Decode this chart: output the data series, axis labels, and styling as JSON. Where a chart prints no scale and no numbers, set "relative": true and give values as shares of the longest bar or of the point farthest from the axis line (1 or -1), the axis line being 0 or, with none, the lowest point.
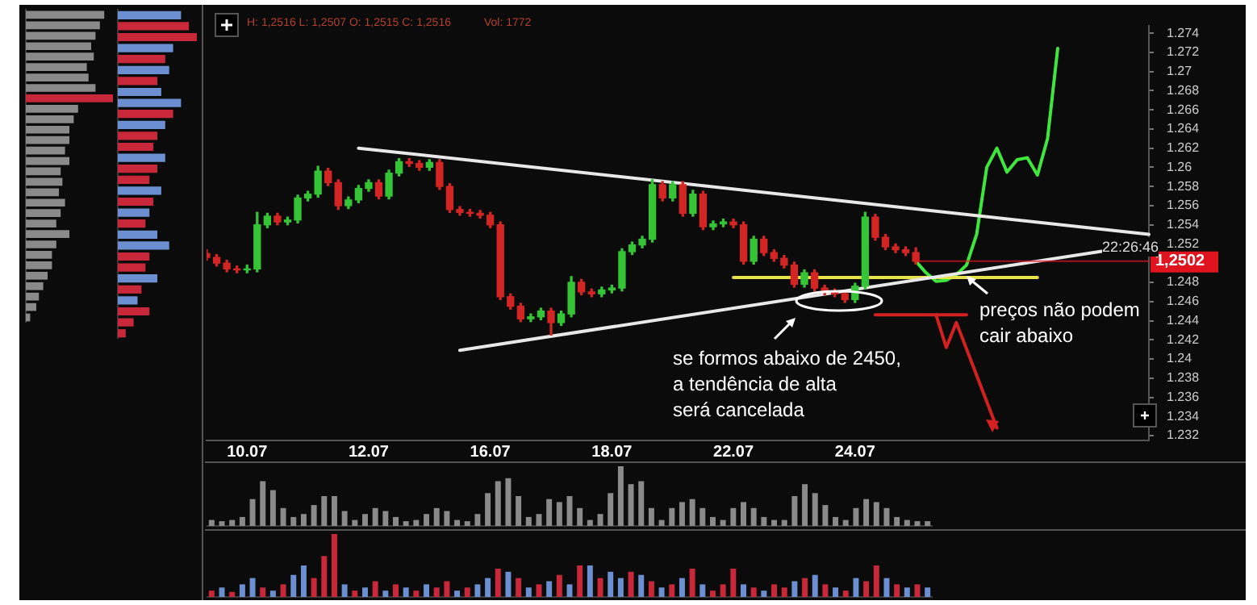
{
  "chart_data": [
    {
      "type": "candlestick",
      "legend": false,
      "grid": false,
      "categories": [
        null,
        null,
        null,
        null,
        "10.07",
        null,
        null,
        null,
        null,
        null,
        null,
        null,
        null,
        null,
        null,
        null,
        "12.07",
        null,
        null,
        null,
        null,
        null,
        null,
        null,
        null,
        null,
        null,
        null,
        "16.07",
        null,
        null,
        null,
        null,
        null,
        null,
        null,
        null,
        null,
        null,
        null,
        "18.07",
        null,
        null,
        null,
        null,
        null,
        null,
        null,
        null,
        null,
        null,
        null,
        "22.07",
        null,
        null,
        null,
        null,
        null,
        null,
        null,
        null,
        null,
        null,
        null,
        "24.07",
        null,
        null,
        null,
        null,
        null,
        null,
        null,
        null,
        null,
        null,
        null,
        null,
        null,
        null,
        null,
        null,
        null,
        null,
        null,
        null,
        null,
        null,
        null,
        null,
        null,
        null,
        null,
        null,
        null
      ],
      "ohlc": [
        [
          1.251,
          1.2514,
          1.2503,
          1.2506
        ],
        [
          1.2506,
          1.2509,
          1.2497,
          1.25
        ],
        [
          1.25,
          1.2503,
          1.2491,
          1.2494
        ],
        [
          1.2494,
          1.2497,
          1.249,
          1.2493
        ],
        [
          1.2493,
          1.2498,
          1.249,
          1.2494
        ],
        [
          1.2494,
          1.2553,
          1.2491,
          1.254
        ],
        [
          1.254,
          1.2552,
          1.2537,
          1.2549
        ],
        [
          1.2549,
          1.2552,
          1.254,
          1.2543
        ],
        [
          1.2543,
          1.2548,
          1.254,
          1.2545
        ],
        [
          1.2545,
          1.2571,
          1.2542,
          1.2568
        ],
        [
          1.2568,
          1.2575,
          1.2565,
          1.2572
        ],
        [
          1.2572,
          1.2601,
          1.2569,
          1.2596
        ],
        [
          1.2596,
          1.2599,
          1.2581,
          1.2584
        ],
        [
          1.2584,
          1.2587,
          1.2556,
          1.256
        ],
        [
          1.256,
          1.2569,
          1.2557,
          1.2566
        ],
        [
          1.2566,
          1.2581,
          1.2563,
          1.2578
        ],
        [
          1.2578,
          1.2587,
          1.2575,
          1.2584
        ],
        [
          1.2584,
          1.2587,
          1.2567,
          1.257
        ],
        [
          1.257,
          1.2597,
          1.2567,
          1.2594
        ],
        [
          1.2594,
          1.2609,
          1.2591,
          1.2606
        ],
        [
          1.2606,
          1.2609,
          1.2601,
          1.2604
        ],
        [
          1.2604,
          1.2607,
          1.2597,
          1.26
        ],
        [
          1.26,
          1.2608,
          1.2597,
          1.2605
        ],
        [
          1.2605,
          1.2608,
          1.2577,
          1.258
        ],
        [
          1.258,
          1.2583,
          1.2553,
          1.2556
        ],
        [
          1.2556,
          1.2559,
          1.255,
          1.2553
        ],
        [
          1.2553,
          1.2556,
          1.2549,
          1.2552
        ],
        [
          1.2552,
          1.2555,
          1.2547,
          1.255
        ],
        [
          1.255,
          1.2553,
          1.2537,
          1.254
        ],
        [
          1.254,
          1.2543,
          1.2462,
          1.2465
        ],
        [
          1.2465,
          1.2468,
          1.2452,
          1.2455
        ],
        [
          1.2455,
          1.2458,
          1.2439,
          1.2442
        ],
        [
          1.2442,
          1.2447,
          1.2439,
          1.2444
        ],
        [
          1.2444,
          1.2453,
          1.2441,
          1.245
        ],
        [
          1.245,
          1.2453,
          1.2425,
          1.2438
        ],
        [
          1.2438,
          1.245,
          1.2435,
          1.2447
        ],
        [
          1.2447,
          1.2486,
          1.2444,
          1.248
        ],
        [
          1.248,
          1.2483,
          1.2467,
          1.247
        ],
        [
          1.247,
          1.2473,
          1.2465,
          1.2468
        ],
        [
          1.2468,
          1.2475,
          1.2465,
          1.2472
        ],
        [
          1.2472,
          1.2477,
          1.2469,
          1.2474
        ],
        [
          1.2474,
          1.2515,
          1.2471,
          1.2512
        ],
        [
          1.2512,
          1.2522,
          1.2509,
          1.2519
        ],
        [
          1.2519,
          1.2528,
          1.2516,
          1.2525
        ],
        [
          1.2525,
          1.2587,
          1.2522,
          1.2582
        ],
        [
          1.2582,
          1.2585,
          1.2565,
          1.2568
        ],
        [
          1.2568,
          1.2585,
          1.2565,
          1.2582
        ],
        [
          1.2582,
          1.2585,
          1.2549,
          1.2552
        ],
        [
          1.2552,
          1.2576,
          1.2549,
          1.2572
        ],
        [
          1.2572,
          1.2575,
          1.2535,
          1.2538
        ],
        [
          1.2538,
          1.2544,
          1.2535,
          1.2541
        ],
        [
          1.2541,
          1.2546,
          1.2538,
          1.2543
        ],
        [
          1.2543,
          1.2546,
          1.2537,
          1.254
        ],
        [
          1.254,
          1.2543,
          1.2499,
          1.2502
        ],
        [
          1.2502,
          1.2528,
          1.2499,
          1.2525
        ],
        [
          1.2525,
          1.2528,
          1.2508,
          1.2511
        ],
        [
          1.2511,
          1.2514,
          1.2502,
          1.2505
        ],
        [
          1.2505,
          1.2508,
          1.2495,
          1.2498
        ],
        [
          1.2498,
          1.2501,
          1.2475,
          1.2478
        ],
        [
          1.2478,
          1.2493,
          1.2475,
          1.249
        ],
        [
          1.249,
          1.2493,
          1.2471,
          1.2474
        ],
        [
          1.2474,
          1.2477,
          1.2467,
          1.247
        ],
        [
          1.247,
          1.2473,
          1.2465,
          1.2468
        ],
        [
          1.2468,
          1.2471,
          1.2459,
          1.2462
        ],
        [
          1.2462,
          1.2479,
          1.2459,
          1.2476
        ],
        [
          1.2476,
          1.2553,
          1.2473,
          1.2548
        ],
        [
          1.2548,
          1.2551,
          1.2524,
          1.2527
        ],
        [
          1.2527,
          1.253,
          1.2514,
          1.2517
        ],
        [
          1.2517,
          1.252,
          1.2511,
          1.2514
        ],
        [
          1.2514,
          1.2517,
          1.2508,
          1.2511
        ],
        [
          1.2511,
          1.2516,
          1.2499,
          1.2502
        ],
        null,
        null,
        null,
        null,
        null,
        null,
        null,
        null,
        null,
        null,
        null,
        null,
        null,
        null,
        null,
        null,
        null,
        null,
        null,
        null,
        null,
        null,
        null
      ],
      "series": [
        {
          "type": "line",
          "color": "#e8e8e8",
          "values": [
            null,
            null,
            null,
            null,
            null,
            null,
            null,
            null,
            null,
            null,
            null,
            null,
            null,
            null,
            null,
            1.262,
            null,
            null,
            null,
            null,
            null,
            null,
            null,
            null,
            null,
            null,
            null,
            null,
            null,
            null,
            null,
            null,
            null,
            null,
            null,
            null,
            null,
            null,
            null,
            null,
            null,
            null,
            null,
            null,
            null,
            null,
            null,
            null,
            null,
            null,
            null,
            null,
            null,
            null,
            null,
            null,
            null,
            null,
            null,
            null,
            null,
            null,
            null,
            null,
            null,
            null,
            null,
            null,
            null,
            null,
            null,
            null,
            null,
            null,
            null,
            null,
            null,
            null,
            null,
            null,
            null,
            null,
            null,
            null,
            null,
            null,
            null,
            null,
            null,
            null,
            null,
            null,
            null,
            1.253
          ]
        },
        {
          "type": "line",
          "color": "#e8e8e8",
          "values": [
            null,
            null,
            null,
            null,
            null,
            null,
            null,
            null,
            null,
            null,
            null,
            null,
            null,
            null,
            null,
            null,
            null,
            null,
            null,
            null,
            null,
            null,
            null,
            null,
            null,
            1.2409,
            null,
            null,
            null,
            null,
            null,
            null,
            null,
            null,
            null,
            null,
            null,
            null,
            null,
            null,
            null,
            null,
            null,
            null,
            null,
            null,
            null,
            null,
            null,
            null,
            null,
            null,
            null,
            null,
            null,
            null,
            null,
            null,
            null,
            null,
            null,
            null,
            null,
            null,
            null,
            null,
            null,
            null,
            null,
            null,
            null,
            null,
            null,
            null,
            null,
            null,
            null,
            null,
            null,
            null,
            null,
            null,
            null,
            null,
            null,
            null,
            null,
            null,
            null,
            null,
            null,
            null,
            null,
            1.252
          ]
        },
        {
          "type": "line",
          "color": "#e6e04a",
          "values": [
            null,
            null,
            null,
            null,
            null,
            null,
            null,
            null,
            null,
            null,
            null,
            null,
            null,
            null,
            null,
            null,
            null,
            null,
            null,
            null,
            null,
            null,
            null,
            null,
            null,
            null,
            null,
            null,
            null,
            null,
            null,
            null,
            null,
            null,
            null,
            null,
            null,
            null,
            null,
            null,
            null,
            null,
            null,
            null,
            null,
            null,
            null,
            null,
            null,
            null,
            null,
            null,
            1.2485,
            null,
            null,
            null,
            null,
            null,
            null,
            null,
            null,
            null,
            null,
            null,
            null,
            null,
            null,
            null,
            null,
            null,
            null,
            null,
            null,
            null,
            null,
            null,
            null,
            null,
            null,
            null,
            null,
            null,
            1.2485,
            null,
            null,
            null,
            null,
            null,
            null,
            null,
            null,
            null,
            null,
            null
          ]
        },
        {
          "type": "line",
          "color": "#3ee63e",
          "values": [
            null,
            null,
            null,
            null,
            null,
            null,
            null,
            null,
            null,
            null,
            null,
            null,
            null,
            null,
            null,
            null,
            null,
            null,
            null,
            null,
            null,
            null,
            null,
            null,
            null,
            null,
            null,
            null,
            null,
            null,
            null,
            null,
            null,
            null,
            null,
            null,
            null,
            null,
            null,
            null,
            null,
            null,
            null,
            null,
            null,
            null,
            null,
            null,
            null,
            null,
            null,
            null,
            null,
            null,
            null,
            null,
            null,
            null,
            null,
            null,
            null,
            null,
            null,
            null,
            null,
            null,
            null,
            null,
            null,
            null,
            1.2502,
            1.249,
            1.2481,
            1.2482,
            1.2488,
            1.2498,
            1.253,
            1.26,
            1.262,
            1.2595,
            1.2608,
            1.261,
            1.2592,
            1.263,
            1.2724,
            null,
            null,
            null,
            null,
            null,
            null,
            null,
            null,
            null
          ]
        },
        {
          "type": "line",
          "color": "#d42020",
          "values": [
            null,
            null,
            null,
            null,
            null,
            null,
            null,
            null,
            null,
            null,
            null,
            null,
            null,
            null,
            null,
            null,
            null,
            null,
            null,
            null,
            null,
            null,
            null,
            null,
            null,
            null,
            null,
            null,
            null,
            null,
            null,
            null,
            null,
            null,
            null,
            null,
            null,
            null,
            null,
            null,
            null,
            null,
            null,
            null,
            null,
            null,
            null,
            null,
            null,
            null,
            null,
            null,
            null,
            null,
            null,
            null,
            null,
            null,
            null,
            null,
            null,
            null,
            null,
            null,
            null,
            null,
            1.2446,
            null,
            null,
            null,
            null,
            null,
            null,
            null,
            null,
            1.2446,
            null,
            null,
            null,
            null,
            null,
            null,
            null,
            null,
            null,
            null,
            null,
            null,
            null,
            null,
            null,
            null,
            null,
            null
          ]
        },
        {
          "type": "line",
          "color": "#d42020",
          "values": [
            null,
            null,
            null,
            null,
            null,
            null,
            null,
            null,
            null,
            null,
            null,
            null,
            null,
            null,
            null,
            null,
            null,
            null,
            null,
            null,
            null,
            null,
            null,
            null,
            null,
            null,
            null,
            null,
            null,
            null,
            null,
            null,
            null,
            null,
            null,
            null,
            null,
            null,
            null,
            null,
            null,
            null,
            null,
            null,
            null,
            null,
            null,
            null,
            null,
            null,
            null,
            null,
            null,
            null,
            null,
            null,
            null,
            null,
            null,
            null,
            null,
            null,
            null,
            null,
            null,
            null,
            null,
            null,
            null,
            null,
            null,
            null,
            1.2446,
            1.2412,
            1.2438,
            null,
            null,
            null,
            1.2328,
            null,
            null,
            null,
            null,
            null,
            null,
            null,
            null,
            null,
            null,
            null,
            null,
            null,
            null,
            null
          ]
        }
      ],
      "ylim": [
        1.2315,
        1.2748
      ],
      "yticks": [
        1.232,
        1.234,
        1.236,
        1.238,
        1.24,
        1.242,
        1.244,
        1.246,
        1.248,
        1.252,
        1.254,
        1.256,
        1.258,
        1.26,
        1.262,
        1.264,
        1.266,
        1.268,
        1.27,
        1.272,
        1.274
      ],
      "ref_lines": [
        {
          "axis": "y",
          "value": 1.2502,
          "label": "1,2502",
          "color": "#e0141e"
        }
      ],
      "annotations": [
        "H: 1,2516 L: 1,2507 O: 1,2515 C: 1,2516",
        "Vol: 1772",
        "22:26:46",
        "se formos abaixo de 2450,\na tendência de alta\nserá cancelada",
        "preços não podem\ncair abaixo"
      ]
    },
    {
      "type": "bar",
      "relative": true,
      "tick_labels": false,
      "legend": false,
      "grid": false,
      "color": "#8a8a8a",
      "categories": [
        null,
        null,
        null,
        null,
        null,
        null,
        null,
        null,
        null,
        null,
        null,
        null,
        null,
        null,
        null,
        null,
        null,
        null,
        null,
        null,
        null,
        null,
        null,
        null,
        null,
        null,
        null,
        null,
        null,
        null,
        null,
        null,
        null,
        null,
        null,
        null,
        null,
        null,
        null,
        null,
        null,
        null,
        null,
        null,
        null,
        null,
        null,
        null,
        null,
        null,
        null,
        null,
        null,
        null,
        null,
        null,
        null,
        null,
        null,
        null,
        null,
        null,
        null,
        null,
        null,
        null,
        null,
        null,
        null,
        null,
        null
      ],
      "values": [
        0.1,
        0.08,
        0.1,
        0.15,
        0.45,
        0.75,
        0.6,
        0.3,
        0.15,
        0.2,
        0.35,
        0.5,
        0.5,
        0.25,
        0.1,
        0.2,
        0.3,
        0.25,
        0.15,
        0.08,
        0.1,
        0.2,
        0.3,
        0.25,
        0.1,
        0.08,
        0.2,
        0.55,
        0.75,
        0.8,
        0.5,
        0.15,
        0.2,
        0.45,
        0.4,
        0.5,
        0.3,
        0.1,
        0.2,
        0.55,
        1.0,
        0.7,
        0.75,
        0.3,
        0.1,
        0.3,
        0.4,
        0.45,
        0.3,
        0.15,
        0.1,
        0.3,
        0.4,
        0.3,
        0.15,
        0.1,
        0.1,
        0.5,
        0.7,
        0.55,
        0.35,
        0.15,
        0.1,
        0.3,
        0.45,
        0.4,
        0.3,
        0.15,
        0.1,
        0.08,
        0.08
      ]
    },
    {
      "type": "bar",
      "relative": true,
      "tick_labels": false,
      "legend": false,
      "grid": false,
      "categories": [
        null,
        null,
        null,
        null,
        null,
        null,
        null,
        null,
        null,
        null,
        null,
        null,
        null,
        null,
        null,
        null,
        null,
        null,
        null,
        null,
        null,
        null,
        null,
        null,
        null,
        null,
        null,
        null,
        null,
        null,
        null,
        null,
        null,
        null,
        null,
        null,
        null,
        null,
        null,
        null,
        null,
        null,
        null,
        null,
        null,
        null,
        null,
        null,
        null,
        null,
        null,
        null,
        null,
        null,
        null,
        null,
        null,
        null,
        null,
        null,
        null,
        null,
        null,
        null,
        null,
        null,
        null,
        null,
        null,
        null,
        null
      ],
      "values": [
        0.1,
        0.15,
        0.08,
        0.2,
        0.3,
        0.15,
        0.1,
        0.2,
        0.35,
        0.5,
        0.3,
        0.65,
        1.0,
        0.2,
        0.1,
        0.15,
        0.25,
        0.1,
        0.2,
        0.15,
        0.1,
        0.2,
        0.15,
        0.25,
        0.1,
        0.15,
        0.2,
        0.3,
        0.45,
        0.4,
        0.3,
        0.15,
        0.2,
        0.25,
        0.35,
        0.2,
        0.5,
        0.5,
        0.3,
        0.4,
        0.3,
        0.4,
        0.35,
        0.25,
        0.15,
        0.2,
        0.3,
        0.45,
        0.2,
        0.1,
        0.2,
        0.45,
        0.2,
        0.15,
        0.1,
        0.2,
        0.15,
        0.25,
        0.3,
        0.35,
        0.2,
        0.15,
        0.1,
        0.3,
        0.25,
        0.5,
        0.3,
        0.2,
        0.15,
        0.2,
        0.15
      ],
      "colors": [
        "#c8283a",
        "#6b8fd0",
        "#c8283a",
        "#6b8fd0",
        "#6b8fd0",
        "#c8283a",
        "#6b8fd0",
        "#c8283a",
        "#6b8fd0",
        "#6b8fd0",
        "#c8283a",
        "#c8283a",
        "#c8283a",
        "#6b8fd0",
        "#c8283a",
        "#6b8fd0",
        "#c8283a",
        "#6b8fd0",
        "#c8283a",
        "#6b8fd0",
        "#c8283a",
        "#6b8fd0",
        "#c8283a",
        "#c8283a",
        "#6b8fd0",
        "#c8283a",
        "#6b8fd0",
        "#6b8fd0",
        "#c8283a",
        "#6b8fd0",
        "#c8283a",
        "#6b8fd0",
        "#c8283a",
        "#6b8fd0",
        "#c8283a",
        "#6b8fd0",
        "#c8283a",
        "#6b8fd0",
        "#c8283a",
        "#6b8fd0",
        "#6b8fd0",
        "#c8283a",
        "#6b8fd0",
        "#c8283a",
        "#6b8fd0",
        "#c8283a",
        "#6b8fd0",
        "#c8283a",
        "#6b8fd0",
        "#c8283a",
        "#c8283a",
        "#c8283a",
        "#6b8fd0",
        "#c8283a",
        "#6b8fd0",
        "#c8283a",
        "#c8283a",
        "#6b8fd0",
        "#c8283a",
        "#6b8fd0",
        "#c8283a",
        "#6b8fd0",
        "#c8283a",
        "#6b8fd0",
        "#c8283a",
        "#c8283a",
        "#6b8fd0",
        "#c8283a",
        "#6b8fd0",
        "#c8283a",
        "#6b8fd0"
      ]
    },
    {
      "type": "bar",
      "orientation": "horizontal",
      "relative": true,
      "tick_labels": false,
      "legend": false,
      "grid": false,
      "categories": [
        null,
        null,
        null,
        null,
        null,
        null,
        null,
        null,
        null,
        null,
        null,
        null,
        null,
        null,
        null,
        null,
        null,
        null,
        null,
        null,
        null,
        null,
        null,
        null,
        null,
        null,
        null,
        null,
        null,
        null
      ],
      "values": [
        0.9,
        0.85,
        0.8,
        0.75,
        0.78,
        0.7,
        0.72,
        0.8,
        1.0,
        0.6,
        0.55,
        0.5,
        0.5,
        0.45,
        0.5,
        0.4,
        0.42,
        0.38,
        0.45,
        0.4,
        0.35,
        0.5,
        0.35,
        0.3,
        0.3,
        0.25,
        0.2,
        0.15,
        0.12,
        0.05
      ],
      "colors": [
        "#8a8a8a",
        "#8a8a8a",
        "#8a8a8a",
        "#8a8a8a",
        "#8a8a8a",
        "#8a8a8a",
        "#8a8a8a",
        "#8a8a8a",
        "#c8283a",
        "#8a8a8a",
        "#8a8a8a",
        "#8a8a8a",
        "#8a8a8a",
        "#8a8a8a",
        "#8a8a8a",
        "#8a8a8a",
        "#8a8a8a",
        "#8a8a8a",
        "#8a8a8a",
        "#8a8a8a",
        "#8a8a8a",
        "#8a8a8a",
        "#8a8a8a",
        "#8a8a8a",
        "#8a8a8a",
        "#8a8a8a",
        "#8a8a8a",
        "#8a8a8a",
        "#8a8a8a",
        "#8a8a8a"
      ]
    },
    {
      "type": "bar",
      "orientation": "horizontal",
      "relative": true,
      "tick_labels": false,
      "legend": false,
      "grid": false,
      "categories": [
        null,
        null,
        null,
        null,
        null,
        null,
        null,
        null,
        null,
        null,
        null,
        null,
        null,
        null,
        null,
        null,
        null,
        null,
        null,
        null,
        null,
        null,
        null,
        null,
        null,
        null,
        null,
        null,
        null,
        null
      ],
      "values": [
        0.8,
        0.9,
        1.0,
        0.7,
        0.6,
        0.65,
        0.5,
        0.55,
        0.8,
        0.7,
        0.6,
        0.5,
        0.45,
        0.6,
        0.5,
        0.4,
        0.55,
        0.45,
        0.4,
        0.35,
        0.5,
        0.65,
        0.4,
        0.35,
        0.5,
        0.3,
        0.25,
        0.4,
        0.2,
        0.1
      ],
      "colors": [
        "#6b8fd0",
        "#c8283a",
        "#c8283a",
        "#6b8fd0",
        "#c8283a",
        "#6b8fd0",
        "#c8283a",
        "#6b8fd0",
        "#6b8fd0",
        "#c8283a",
        "#6b8fd0",
        "#c8283a",
        "#c8283a",
        "#6b8fd0",
        "#c8283a",
        "#c8283a",
        "#6b8fd0",
        "#c8283a",
        "#6b8fd0",
        "#c8283a",
        "#6b8fd0",
        "#6b8fd0",
        "#c8283a",
        "#c8283a",
        "#6b8fd0",
        "#c8283a",
        "#6b8fd0",
        "#c8283a",
        "#c8283a",
        "#c8283a"
      ]
    }
  ]
}
